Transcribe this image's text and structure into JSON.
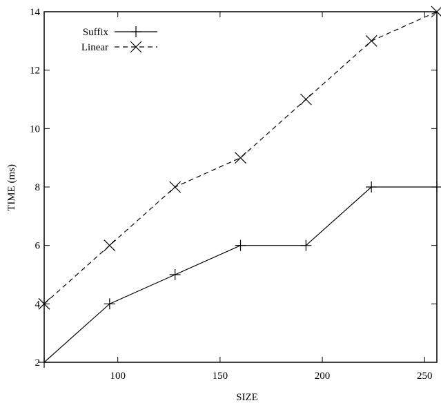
{
  "chart_data": {
    "type": "line",
    "title": "",
    "xlabel": "SIZE",
    "ylabel": "TIME (ms)",
    "xlim": [
      64,
      256
    ],
    "ylim": [
      2,
      14
    ],
    "xticks": [
      100,
      150,
      200,
      250
    ],
    "yticks": [
      2,
      4,
      6,
      8,
      10,
      12,
      14
    ],
    "grid": false,
    "legend": "top-left",
    "series": [
      {
        "name": "Suffix",
        "marker": "plus",
        "line_style": "solid",
        "x": [
          64,
          96,
          128,
          160,
          192,
          224,
          256
        ],
        "y": [
          2,
          4,
          5,
          6,
          6,
          8,
          8
        ]
      },
      {
        "name": "Linear",
        "marker": "cross",
        "line_style": "dashed",
        "x": [
          64,
          96,
          128,
          160,
          192,
          224,
          256
        ],
        "y": [
          4,
          6,
          8,
          9,
          11,
          13,
          14
        ]
      }
    ]
  }
}
